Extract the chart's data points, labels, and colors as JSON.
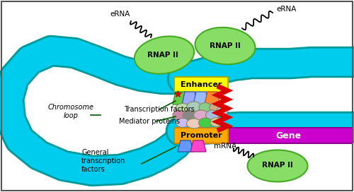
{
  "background_color": "#ffffff",
  "border_color": "#555555",
  "chromosome_color": "#00ccee",
  "chromosome_outline": "#009999",
  "enhancer_color": "#ffff00",
  "enhancer_text": "Enhancer",
  "promoter_color": "#ffaa00",
  "promoter_text": "Promoter",
  "gene_color": "#cc00cc",
  "gene_text": "Gene",
  "rnap_color": "#88dd66",
  "rnap_text": "RNAP II",
  "erna_text": "eRNA",
  "mrna_text": "mRNA",
  "red_zigzag_color": "#dd0000",
  "label_transcription_factors": "Transcription factors",
  "label_mediator_proteins": "Mediator proteins",
  "label_general_tf": "General\ntranscription\nfactors",
  "label_chromosome": "Chromosome\nloop",
  "label_color": "#005500",
  "label_fontsize": 7.0,
  "chrom_lw": 28
}
